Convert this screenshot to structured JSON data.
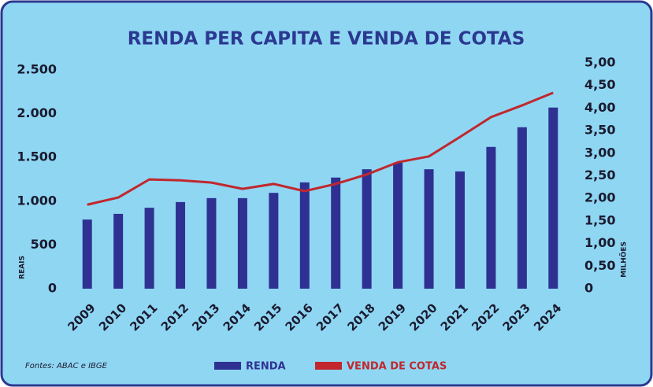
{
  "chart_data": {
    "type": "bar",
    "title": "RENDA PER CAPITA E VENDA DE COTAS",
    "y_label": "REAIS",
    "y2_label": "MILHÕES",
    "source": "Fontes: ABAC e IBGE",
    "categories": [
      "2009",
      "2010",
      "2011",
      "2012",
      "2013",
      "2014",
      "2015",
      "2016",
      "2017",
      "2018",
      "2019",
      "2020",
      "2021",
      "2022",
      "2023",
      "2024"
    ],
    "series": [
      {
        "name": "RENDA",
        "color": "#2e3192",
        "type": "bar",
        "values": [
          790,
          855,
          925,
          990,
          1035,
          1035,
          1095,
          1215,
          1270,
          1365,
          1440,
          1365,
          1340,
          1620,
          1845,
          2070
        ]
      },
      {
        "name": "VENDA DE COTAS",
        "color": "#c1272d",
        "type": "line",
        "axis": "y2",
        "values": [
          1.86,
          2.02,
          2.42,
          2.4,
          2.35,
          2.21,
          2.32,
          2.16,
          2.32,
          2.53,
          2.8,
          2.93,
          3.36,
          3.8,
          4.06,
          4.34
        ]
      }
    ],
    "ylim": [
      0,
      2580
    ],
    "yticks": [
      0,
      {
        "value": 500,
        "label": "500"
      },
      {
        "value": 1000,
        "label": "1.000"
      },
      {
        "value": 1500,
        "label": "1.500"
      },
      {
        "value": 2000,
        "label": "2.000"
      },
      {
        "value": 2500,
        "label": "2.500"
      }
    ],
    "y2lim": [
      0,
      5
    ],
    "y2ticks": [
      0,
      {
        "value": 0.5,
        "label": "0,50"
      },
      {
        "value": 1,
        "label": "1,00"
      },
      {
        "value": 1.5,
        "label": "1,50"
      },
      {
        "value": 2,
        "label": "2,00"
      },
      {
        "value": 2.5,
        "label": "2,50"
      },
      {
        "value": 3,
        "label": "3,00"
      },
      {
        "value": 3.5,
        "label": "3,50"
      },
      {
        "value": 4,
        "label": "4,00"
      },
      {
        "value": 4.5,
        "label": "4,50"
      },
      {
        "value": 5,
        "label": "5,00"
      }
    ],
    "grid": false,
    "legend": "bottom"
  }
}
